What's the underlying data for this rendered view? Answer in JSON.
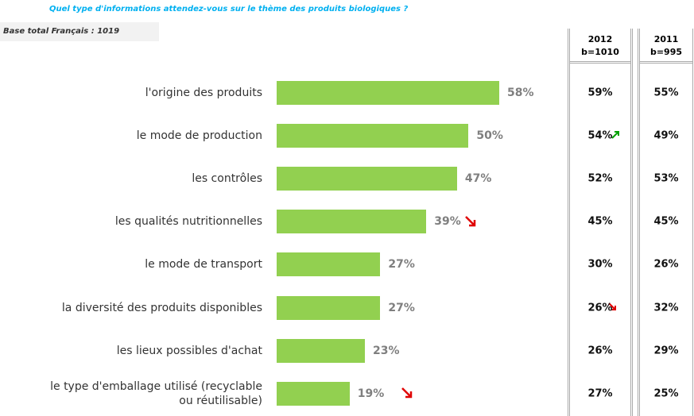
{
  "chart_data": {
    "type": "bar",
    "orientation": "horizontal",
    "title": "Quel type d'informations attendez-vous sur le thème des produits biologiques ?",
    "subtitle": "Base total Français : 1019",
    "categories": [
      "l'origine des produits",
      "le mode de production",
      "les contrôles",
      "les qualités nutritionnelles",
      "le mode de transport",
      "la diversité des produits disponibles",
      "les lieux possibles d'achat",
      "le type d'emballage utilisé (recyclable\nou réutilisable)"
    ],
    "values": [
      58,
      50,
      47,
      39,
      27,
      27,
      23,
      19
    ],
    "value_labels": [
      "58%",
      "50%",
      "47%",
      "39%",
      "27%",
      "27%",
      "23%",
      "19%"
    ],
    "color": "#92d050"
  },
  "table": {
    "columns": [
      {
        "year": "2012",
        "base": "b=1010",
        "cells": [
          "59%",
          "54%",
          "52%",
          "45%",
          "30%",
          "26%",
          "26%",
          "27%"
        ]
      },
      {
        "year": "2011",
        "base": "b=995",
        "cells": [
          "55%",
          "49%",
          "53%",
          "45%",
          "26%",
          "32%",
          "29%",
          "25%"
        ]
      }
    ]
  }
}
